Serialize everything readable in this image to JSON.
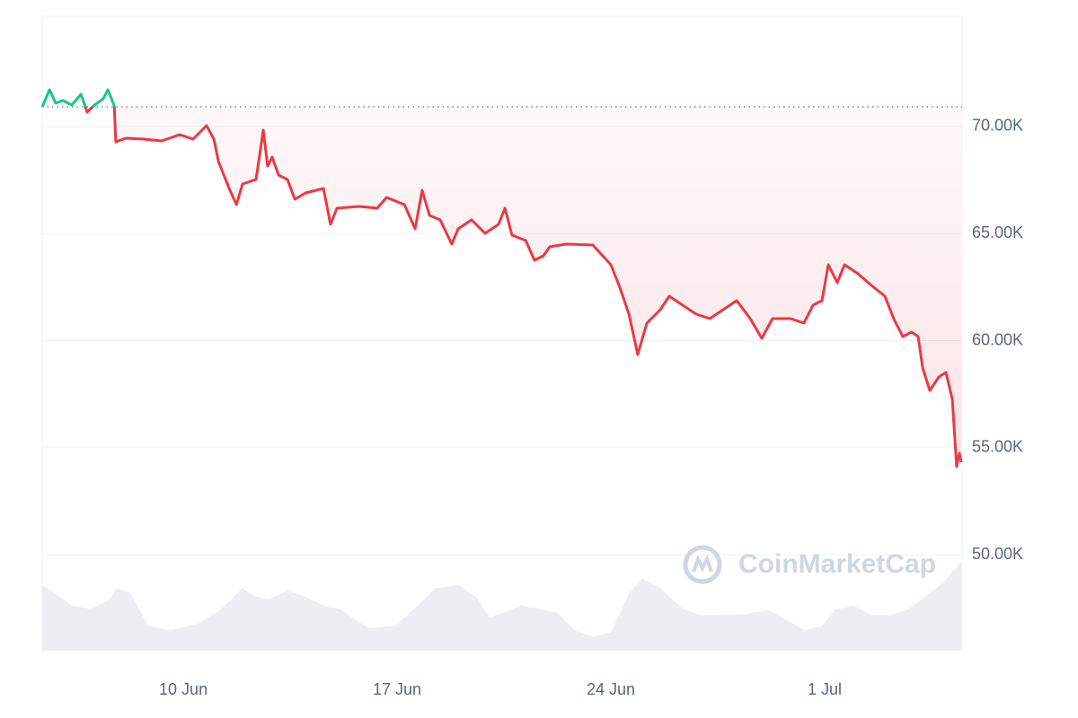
{
  "chart_data": {
    "type": "line",
    "watermark": "CoinMarketCap",
    "x": [
      5.38,
      5.62,
      5.82,
      6.06,
      6.35,
      6.65,
      6.85,
      7.06,
      7.38,
      7.53,
      7.74,
      7.79,
      8.12,
      8.71,
      9.29,
      9.88,
      10.32,
      10.76,
      11.0,
      11.15,
      11.5,
      11.74,
      11.94,
      12.38,
      12.62,
      12.76,
      12.91,
      13.12,
      13.41,
      13.65,
      14.0,
      14.59,
      14.82,
      15.03,
      15.76,
      16.35,
      16.65,
      17.24,
      17.59,
      17.82,
      18.06,
      18.41,
      18.79,
      19.0,
      19.44,
      19.88,
      20.32,
      20.53,
      20.76,
      21.21,
      21.5,
      21.79,
      22.0,
      22.53,
      23.41,
      24.0,
      24.29,
      24.59,
      24.88,
      25.18,
      25.62,
      25.91,
      26.35,
      26.79,
      27.24,
      27.68,
      28.12,
      28.56,
      28.94,
      29.29,
      29.88,
      30.32,
      30.62,
      30.91,
      31.12,
      31.41,
      31.65,
      32.09,
      32.53,
      32.97,
      33.26,
      33.56,
      33.85,
      34.06,
      34.21,
      34.44,
      34.74,
      34.97,
      35.18,
      35.32,
      35.41,
      35.47
    ],
    "series": [
      {
        "color": "#ea3943",
        "color_above": "#16c784",
        "values": [
          70920,
          71720,
          71090,
          71217,
          71007,
          71510,
          70671,
          70965,
          71300,
          71720,
          70965,
          69288,
          69456,
          69414,
          69330,
          69623,
          69414,
          70043,
          69414,
          68365,
          67107,
          66353,
          67317,
          67527,
          69833,
          68156,
          68575,
          67736,
          67527,
          66604,
          66898,
          67107,
          65430,
          66185,
          66269,
          66185,
          66688,
          66353,
          65221,
          67024,
          65850,
          65640,
          64508,
          65221,
          65640,
          65011,
          65430,
          66185,
          64927,
          64676,
          63753,
          63963,
          64382,
          64508,
          64466,
          63543,
          62495,
          61237,
          59350,
          60818,
          61447,
          62076,
          61657,
          61237,
          61028,
          61447,
          61866,
          61028,
          60105,
          61028,
          61028,
          60818,
          61657,
          61866,
          63543,
          62705,
          63543,
          63124,
          62579,
          62076,
          61028,
          60189,
          60398,
          60189,
          58721,
          57673,
          58302,
          58511,
          57254,
          54109,
          54738,
          54319
        ]
      }
    ],
    "baseline": 70920,
    "volume": {
      "color": "#eceef2",
      "x": [
        5.38,
        5.76,
        6.35,
        6.94,
        7.53,
        7.82,
        8.26,
        8.56,
        8.85,
        9.59,
        10.47,
        11.21,
        11.94,
        12.38,
        12.82,
        13.41,
        14.0,
        14.59,
        15.18,
        15.62,
        16.06,
        16.94,
        17.68,
        18.26,
        19.0,
        19.59,
        20.03,
        20.47,
        21.06,
        21.65,
        22.24,
        22.82,
        23.41,
        24.0,
        24.59,
        25.03,
        25.62,
        26.35,
        26.94,
        27.53,
        28.41,
        29.15,
        29.74,
        30.32,
        30.91,
        31.35,
        31.94,
        32.53,
        33.12,
        33.71,
        34.29,
        34.88,
        35.47
      ],
      "values": [
        61,
        54,
        42,
        39,
        46,
        58,
        54,
        38,
        23,
        19,
        25,
        38,
        58,
        50,
        48,
        56,
        50,
        42,
        38,
        29,
        21,
        23,
        42,
        58,
        61,
        50,
        31,
        35,
        42,
        39,
        35,
        19,
        13,
        17,
        53,
        67,
        58,
        39,
        33,
        33,
        34,
        38,
        29,
        19,
        23,
        38,
        42,
        33,
        33,
        38,
        50,
        63,
        83
      ]
    },
    "xlim": [
      5.38,
      35.5
    ],
    "ylim": [
      45514,
      75157
    ],
    "xticks": [
      {
        "value": 10,
        "label": "10 Jun"
      },
      {
        "value": 17,
        "label": "17 Jun"
      },
      {
        "value": 24,
        "label": "24 Jun"
      },
      {
        "value": 31,
        "label": "1 Jul"
      }
    ],
    "yticks": [
      {
        "value": 50000,
        "label": "50.00K"
      },
      {
        "value": 55000,
        "label": "55.00K"
      },
      {
        "value": 60000,
        "label": "60.00K"
      },
      {
        "value": 65000,
        "label": "65.00K"
      },
      {
        "value": 70000,
        "label": "70.00K"
      }
    ],
    "grid": true
  }
}
